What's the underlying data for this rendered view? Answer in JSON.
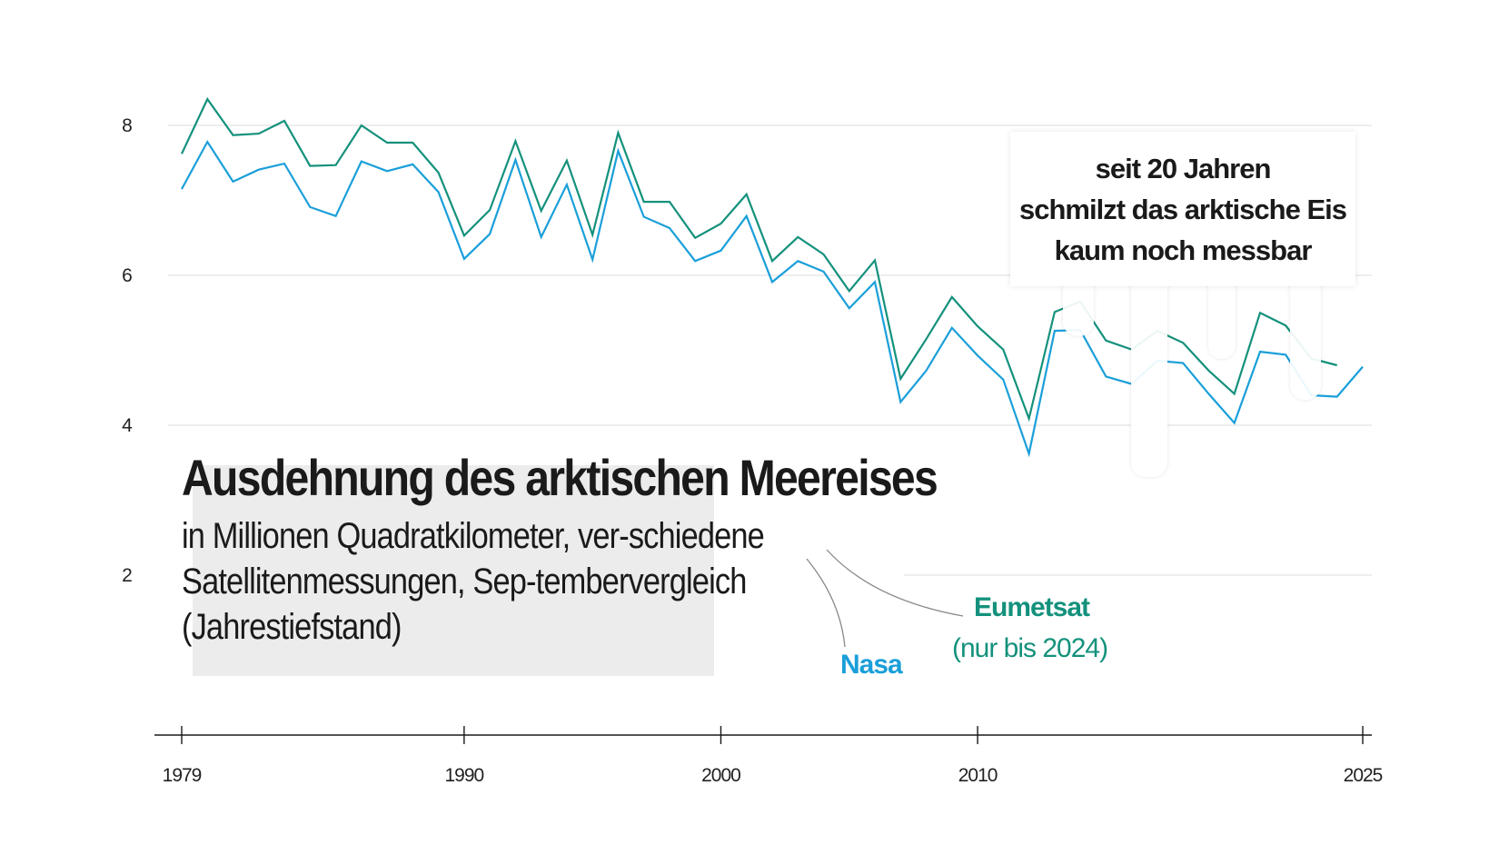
{
  "chart_data": {
    "type": "line",
    "title": "Ausdehnung des arktischen Meereises",
    "subtitle": "in Millionen Quadratkilometer, ver-schiedene Satellitenmessungen, Sep-tembervergleich (Jahrestiefstand)",
    "xlabel": "",
    "ylabel": "",
    "xlim": [
      1979,
      2025
    ],
    "ylim": [
      0,
      8.5
    ],
    "x_ticks": [
      "1979",
      "1990",
      "2000",
      "2010",
      "2025"
    ],
    "y_ticks": [
      "2",
      "4",
      "6",
      "8"
    ],
    "grid": "horizontal",
    "annotation": "seit 20 Jahren\nschmilzt das arktische Eis\nkaum noch messbar",
    "series": [
      {
        "name": "Nasa",
        "color": "#1a9fd9",
        "x": [
          1979,
          1980,
          1981,
          1982,
          1983,
          1984,
          1985,
          1986,
          1987,
          1988,
          1989,
          1990,
          1991,
          1992,
          1993,
          1994,
          1995,
          1996,
          1997,
          1998,
          1999,
          2000,
          2001,
          2002,
          2003,
          2004,
          2005,
          2006,
          2007,
          2008,
          2009,
          2010,
          2011,
          2012,
          2013,
          2014,
          2015,
          2016,
          2017,
          2018,
          2019,
          2020,
          2021,
          2022,
          2023,
          2024,
          2025
        ],
        "values": [
          7.15,
          7.78,
          7.25,
          7.41,
          7.49,
          6.91,
          6.79,
          7.52,
          7.39,
          7.48,
          7.11,
          6.22,
          6.55,
          7.54,
          6.51,
          7.21,
          6.21,
          7.66,
          6.78,
          6.63,
          6.19,
          6.33,
          6.79,
          5.91,
          6.19,
          6.05,
          5.56,
          5.91,
          4.31,
          4.73,
          5.3,
          4.93,
          4.61,
          3.62,
          5.26,
          5.27,
          4.65,
          4.55,
          4.86,
          4.83,
          4.42,
          4.03,
          4.98,
          4.94,
          4.4,
          4.38,
          4.78
        ]
      },
      {
        "name": "Eumetsat",
        "note": "(nur bis 2024)",
        "color": "#14917c",
        "x": [
          1979,
          1980,
          1981,
          1982,
          1983,
          1984,
          1985,
          1986,
          1987,
          1988,
          1989,
          1990,
          1991,
          1992,
          1993,
          1994,
          1995,
          1996,
          1997,
          1998,
          1999,
          2000,
          2001,
          2002,
          2003,
          2004,
          2005,
          2006,
          2007,
          2008,
          2009,
          2010,
          2011,
          2012,
          2013,
          2014,
          2015,
          2016,
          2017,
          2018,
          2019,
          2020,
          2021,
          2022,
          2023,
          2024
        ],
        "values": [
          7.62,
          8.35,
          7.87,
          7.89,
          8.06,
          7.46,
          7.47,
          8.0,
          7.77,
          7.77,
          7.37,
          6.53,
          6.87,
          7.79,
          6.86,
          7.53,
          6.54,
          7.9,
          6.98,
          6.98,
          6.5,
          6.69,
          7.08,
          6.19,
          6.51,
          6.28,
          5.79,
          6.2,
          4.62,
          5.15,
          5.71,
          5.32,
          5.01,
          4.09,
          5.51,
          5.65,
          5.13,
          5.01,
          5.26,
          5.1,
          4.73,
          4.42,
          5.5,
          5.33,
          4.89,
          4.8
        ]
      }
    ]
  }
}
